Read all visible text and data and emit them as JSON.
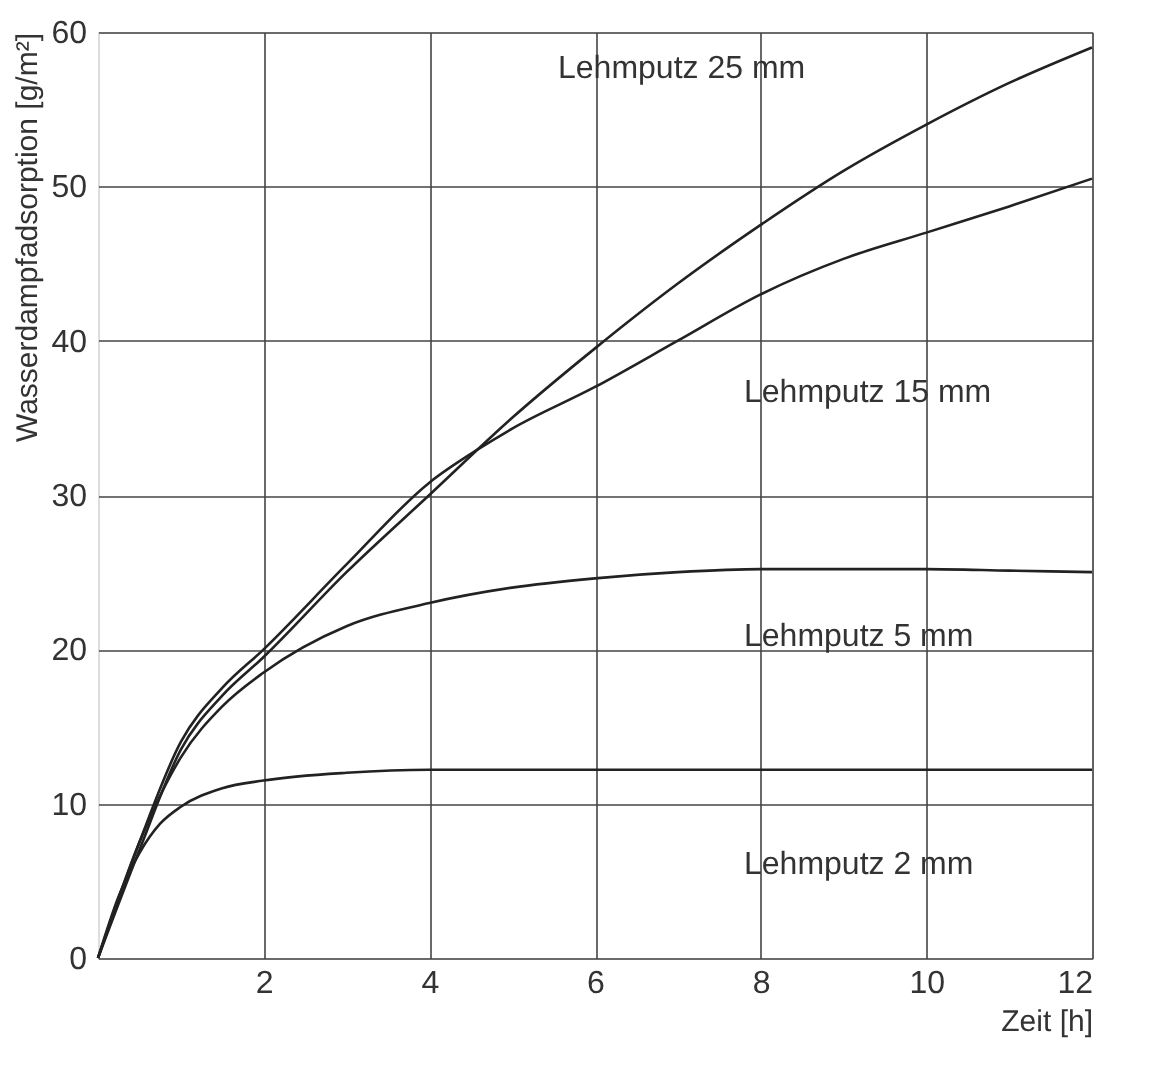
{
  "chart_data": {
    "type": "line",
    "xlabel": "Zeit [h]",
    "ylabel": "Wasserdampfadsorption [g/m²]",
    "xlim": [
      0,
      12
    ],
    "ylim": [
      0,
      60
    ],
    "xticks": [
      2,
      4,
      6,
      8,
      10,
      12
    ],
    "yticks": [
      0,
      10,
      20,
      30,
      40,
      50,
      60
    ],
    "grid": true,
    "legend": false,
    "marker": "none",
    "line_style": "solid",
    "series": [
      {
        "name": "Lehmputz 25 mm",
        "color": "#222222",
        "x": [
          0,
          0.5,
          1,
          1.5,
          2,
          3,
          4,
          5,
          6,
          7,
          8,
          9,
          10,
          11,
          12
        ],
        "values": [
          0,
          7,
          13.5,
          17,
          19.5,
          25,
          30,
          35,
          39.5,
          43.7,
          47.5,
          51,
          54,
          56.7,
          59
        ]
      },
      {
        "name": "Lehmputz 15 mm",
        "color": "#222222",
        "x": [
          0,
          0.5,
          1,
          1.5,
          2,
          3,
          4,
          4.6,
          5,
          6,
          7,
          8,
          9,
          10,
          11,
          12
        ],
        "values": [
          0,
          7.5,
          14,
          17.5,
          20,
          25.5,
          30.8,
          33,
          34.3,
          37,
          40,
          43,
          45.3,
          47,
          48.7,
          50.5
        ]
      },
      {
        "name": "Lehmputz 5 mm",
        "color": "#222222",
        "x": [
          0,
          0.5,
          1,
          1.5,
          2,
          3,
          4,
          5,
          6,
          7,
          8,
          9,
          10,
          11,
          12
        ],
        "values": [
          0,
          7.5,
          13,
          16.3,
          18.5,
          21.5,
          23,
          24,
          24.6,
          25,
          25.2,
          25.2,
          25.2,
          25.1,
          25
        ]
      },
      {
        "name": "Lehmputz 2 mm",
        "color": "#222222",
        "x": [
          0,
          0.25,
          0.5,
          0.75,
          1,
          1.5,
          2,
          3,
          4,
          6,
          8,
          10,
          12
        ],
        "values": [
          0,
          4,
          6.8,
          8.7,
          9.8,
          11,
          11.5,
          12,
          12.2,
          12.2,
          12.2,
          12.2,
          12.2
        ]
      }
    ]
  }
}
